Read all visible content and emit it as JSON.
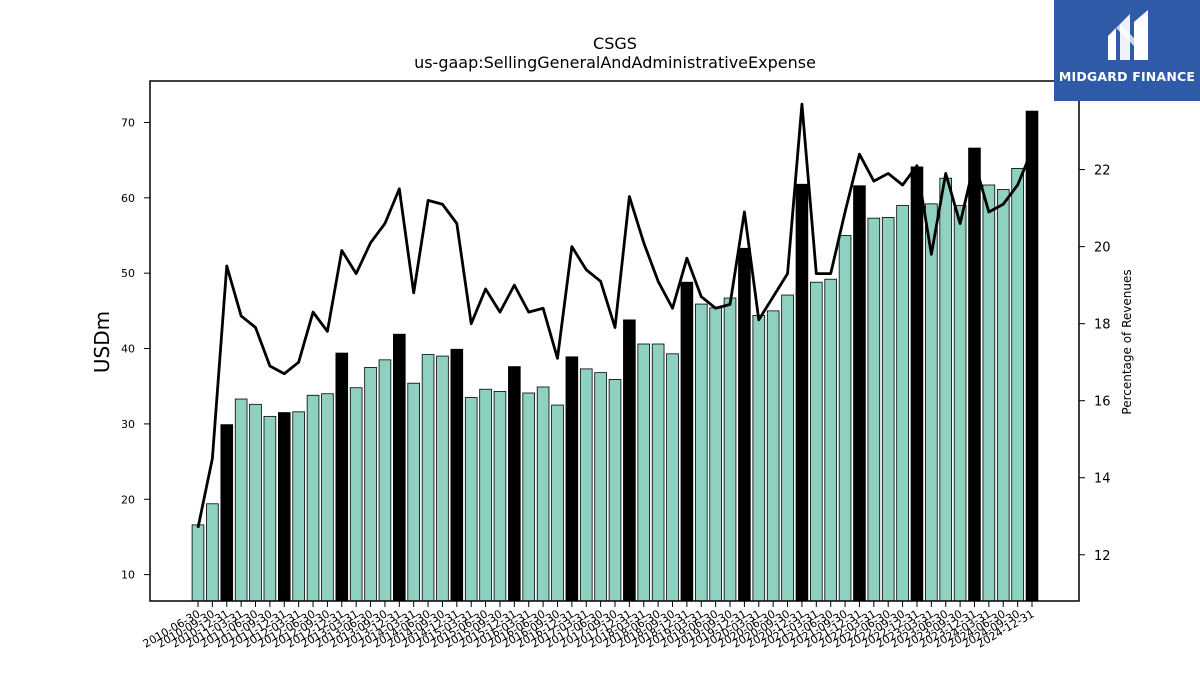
{
  "logo": {
    "text": "MIDGARD FINANCE"
  },
  "chart_data": {
    "type": "bar",
    "title": "CSGS",
    "subtitle": "us-gaap:SellingGeneralAndAdministrativeExpense",
    "ylabel": "USDm",
    "y2label": "Percentage of Revenues",
    "ylim": [
      6.5,
      75.5
    ],
    "y2lim": [
      10.8,
      24.3
    ],
    "yticks": [
      10,
      20,
      30,
      40,
      50,
      60,
      70
    ],
    "y2ticks": [
      12,
      14,
      16,
      18,
      20,
      22
    ],
    "colors": {
      "quarter": "#8fd1c0",
      "annual": "#000000",
      "line": "#000000"
    },
    "categories": [
      "2010-06-30",
      "2010-09-30",
      "2010-12-31",
      "2011-03-31",
      "2011-06-30",
      "2011-09-30",
      "2011-12-31",
      "2012-03-31",
      "2012-06-30",
      "2012-09-30",
      "2012-12-31",
      "2013-03-31",
      "2013-06-30",
      "2013-09-30",
      "2013-12-31",
      "2014-03-31",
      "2014-06-30",
      "2014-09-30",
      "2014-12-31",
      "2015-03-31",
      "2015-06-30",
      "2015-09-30",
      "2015-12-31",
      "2016-03-31",
      "2016-06-30",
      "2016-09-30",
      "2016-12-31",
      "2017-03-31",
      "2017-06-30",
      "2017-09-30",
      "2017-12-31",
      "2018-03-31",
      "2018-06-30",
      "2018-09-30",
      "2018-12-31",
      "2019-03-31",
      "2019-06-30",
      "2019-09-30",
      "2019-12-31",
      "2020-03-31",
      "2020-06-30",
      "2020-09-30",
      "2020-12-31",
      "2021-03-31",
      "2021-06-30",
      "2021-09-30",
      "2021-12-31",
      "2022-03-31",
      "2022-06-30",
      "2022-09-30",
      "2022-12-31",
      "2023-03-31",
      "2023-06-30",
      "2023-09-30",
      "2023-12-31",
      "2024-03-31",
      "2024-06-30",
      "2024-09-30",
      "2024-12-31"
    ],
    "series": [
      {
        "values": [
          16.6,
          19.4,
          29.9,
          33.3,
          32.6,
          31.0,
          31.5,
          31.6,
          33.8,
          34.0,
          39.4,
          34.8,
          37.5,
          38.5,
          41.9,
          35.4,
          39.2,
          39.0,
          39.9,
          33.5,
          34.6,
          34.3,
          37.6,
          34.1,
          34.9,
          32.5,
          38.9,
          37.3,
          36.8,
          35.9,
          43.8,
          40.6,
          40.6,
          39.3,
          48.8,
          45.9,
          45.4,
          46.7,
          53.3,
          44.4,
          45.0,
          47.1,
          61.8,
          48.8,
          49.2,
          55.0,
          61.6,
          57.3,
          57.4,
          59.0,
          64.1,
          59.2,
          62.6,
          59.0,
          66.6,
          61.7,
          61.1,
          63.9,
          71.5
        ],
        "annual": [
          false,
          false,
          true,
          false,
          false,
          false,
          true,
          false,
          false,
          false,
          true,
          false,
          false,
          false,
          true,
          false,
          false,
          false,
          true,
          false,
          false,
          false,
          true,
          false,
          false,
          false,
          true,
          false,
          false,
          false,
          true,
          false,
          false,
          false,
          true,
          false,
          false,
          false,
          true,
          false,
          false,
          false,
          true,
          false,
          false,
          false,
          true,
          false,
          false,
          false,
          true,
          false,
          false,
          false,
          true,
          false,
          false,
          false,
          true
        ]
      },
      {
        "axis": "right",
        "values": [
          12.7,
          14.5,
          19.5,
          18.2,
          17.9,
          16.9,
          16.7,
          17.0,
          18.3,
          17.8,
          19.9,
          19.3,
          20.1,
          20.6,
          21.5,
          18.8,
          21.2,
          21.1,
          20.6,
          18.0,
          18.9,
          18.3,
          19.0,
          18.3,
          18.4,
          17.1,
          20.0,
          19.4,
          19.1,
          17.9,
          21.3,
          20.1,
          19.1,
          18.4,
          19.7,
          18.7,
          18.4,
          18.5,
          20.9,
          18.1,
          18.7,
          19.3,
          23.7,
          19.3,
          19.3,
          20.9,
          22.4,
          21.7,
          21.9,
          21.6,
          22.1,
          19.8,
          21.9,
          20.6,
          22.2,
          20.9,
          21.1,
          21.6,
          22.5
        ]
      }
    ]
  }
}
